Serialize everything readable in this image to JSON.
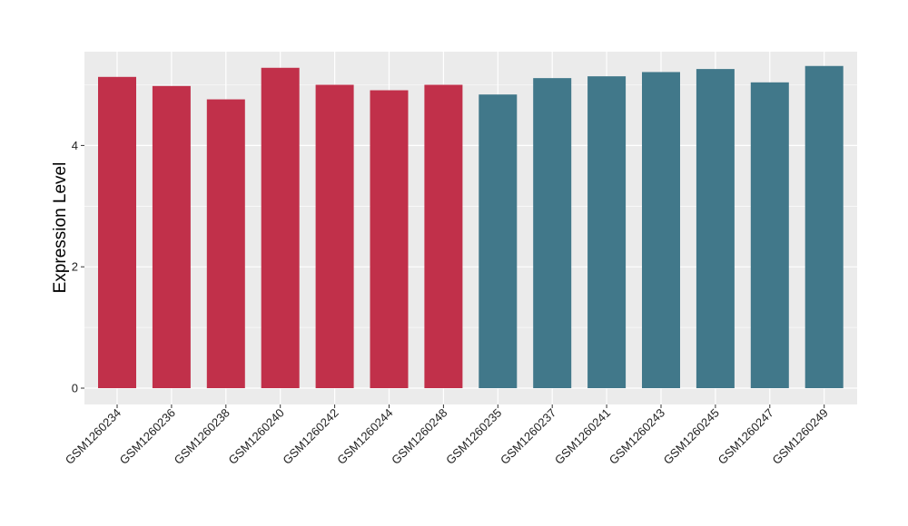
{
  "chart_data": {
    "type": "bar",
    "title": "",
    "xlabel": "",
    "ylabel": "Expression Level",
    "ylim": [
      0,
      5.45
    ],
    "yticks": [
      0,
      2,
      4
    ],
    "grid": true,
    "legend": "none",
    "categories": [
      "GSM1260234",
      "GSM1260236",
      "GSM1260238",
      "GSM1260240",
      "GSM1260242",
      "GSM1260244",
      "GSM1260248",
      "GSM1260235",
      "GSM1260237",
      "GSM1260241",
      "GSM1260243",
      "GSM1260245",
      "GSM1260247",
      "GSM1260249"
    ],
    "values": [
      5.13,
      4.98,
      4.76,
      5.28,
      5.0,
      4.91,
      5.0,
      4.84,
      5.11,
      5.14,
      5.21,
      5.26,
      5.04,
      5.31
    ],
    "bar_colors": [
      "#C1304A",
      "#C1304A",
      "#C1304A",
      "#C1304A",
      "#C1304A",
      "#C1304A",
      "#C1304A",
      "#41788A",
      "#41788A",
      "#41788A",
      "#41788A",
      "#41788A",
      "#41788A",
      "#41788A"
    ],
    "panel_background": "#EBEBEB",
    "grid_color": "#FFFFFF"
  }
}
